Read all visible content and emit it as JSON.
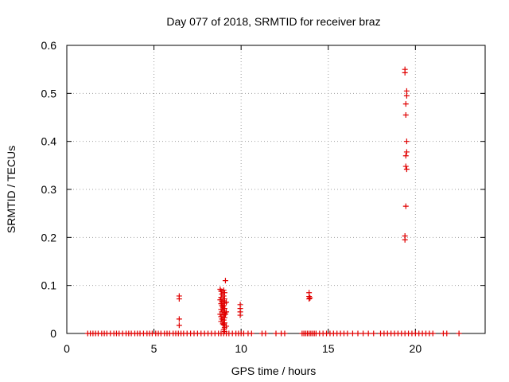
{
  "chart_data": {
    "type": "scatter",
    "title": "Day 077 of 2018, SRMTID for receiver braz",
    "xlabel": "GPS time / hours",
    "ylabel": "SRMTID / TECUs",
    "xlim": [
      0,
      24
    ],
    "ylim": [
      0,
      0.6
    ],
    "xticks": [
      0,
      5,
      10,
      15,
      20
    ],
    "xtick_labels": [
      "0",
      "5",
      "10",
      "15",
      "20"
    ],
    "yticks": [
      0,
      0.1,
      0.2,
      0.3,
      0.4,
      0.5,
      0.6
    ],
    "ytick_labels": [
      "0",
      "0.1",
      "0.2",
      "0.3",
      "0.4",
      "0.5",
      "0.6"
    ],
    "grid": true,
    "marker": "+",
    "marker_color": "#e00000",
    "series": [
      {
        "name": "braz",
        "points": [
          [
            1.2,
            0
          ],
          [
            1.35,
            0
          ],
          [
            1.5,
            0
          ],
          [
            1.65,
            0
          ],
          [
            1.8,
            0
          ],
          [
            2.0,
            0
          ],
          [
            2.15,
            0
          ],
          [
            2.3,
            0
          ],
          [
            2.5,
            0
          ],
          [
            2.7,
            0
          ],
          [
            2.85,
            0
          ],
          [
            3.0,
            0
          ],
          [
            3.2,
            0
          ],
          [
            3.4,
            0
          ],
          [
            3.55,
            0
          ],
          [
            3.7,
            0
          ],
          [
            3.9,
            0
          ],
          [
            4.05,
            0
          ],
          [
            4.2,
            0
          ],
          [
            4.4,
            0
          ],
          [
            4.6,
            0
          ],
          [
            4.75,
            0
          ],
          [
            4.9,
            0
          ],
          [
            5.1,
            0
          ],
          [
            5.25,
            0
          ],
          [
            5.4,
            0
          ],
          [
            5.6,
            0
          ],
          [
            5.75,
            0
          ],
          [
            5.9,
            0
          ],
          [
            6.1,
            0
          ],
          [
            6.25,
            0
          ],
          [
            6.4,
            0
          ],
          [
            6.55,
            0
          ],
          [
            6.7,
            0
          ],
          [
            6.9,
            0
          ],
          [
            7.1,
            0
          ],
          [
            7.3,
            0
          ],
          [
            7.5,
            0
          ],
          [
            7.7,
            0
          ],
          [
            7.9,
            0
          ],
          [
            8.1,
            0
          ],
          [
            8.3,
            0
          ],
          [
            8.5,
            0
          ],
          [
            8.7,
            0
          ],
          [
            8.85,
            0
          ],
          [
            9.0,
            0
          ],
          [
            9.15,
            0
          ],
          [
            9.3,
            0
          ],
          [
            9.5,
            0
          ],
          [
            9.7,
            0
          ],
          [
            9.85,
            0
          ],
          [
            10.0,
            0
          ],
          [
            10.15,
            0
          ],
          [
            10.4,
            0
          ],
          [
            10.6,
            0
          ],
          [
            11.2,
            0
          ],
          [
            11.4,
            0
          ],
          [
            12.0,
            0
          ],
          [
            12.3,
            0
          ],
          [
            12.5,
            0
          ],
          [
            13.5,
            0
          ],
          [
            13.6,
            0
          ],
          [
            13.7,
            0
          ],
          [
            13.8,
            0
          ],
          [
            13.9,
            0
          ],
          [
            14.0,
            0
          ],
          [
            14.1,
            0
          ],
          [
            14.2,
            0
          ],
          [
            14.3,
            0
          ],
          [
            14.5,
            0
          ],
          [
            14.7,
            0
          ],
          [
            14.9,
            0
          ],
          [
            15.1,
            0
          ],
          [
            15.3,
            0
          ],
          [
            15.5,
            0
          ],
          [
            15.7,
            0
          ],
          [
            15.9,
            0
          ],
          [
            16.1,
            0
          ],
          [
            16.4,
            0
          ],
          [
            16.7,
            0
          ],
          [
            17.0,
            0
          ],
          [
            17.3,
            0
          ],
          [
            17.6,
            0
          ],
          [
            18.0,
            0
          ],
          [
            18.2,
            0
          ],
          [
            18.4,
            0
          ],
          [
            18.6,
            0
          ],
          [
            18.8,
            0
          ],
          [
            19.0,
            0
          ],
          [
            19.2,
            0
          ],
          [
            19.4,
            0
          ],
          [
            19.6,
            0
          ],
          [
            19.8,
            0
          ],
          [
            20.0,
            0
          ],
          [
            20.2,
            0
          ],
          [
            20.4,
            0
          ],
          [
            20.6,
            0
          ],
          [
            20.8,
            0
          ],
          [
            21.0,
            0
          ],
          [
            21.6,
            0
          ],
          [
            21.8,
            0
          ],
          [
            22.5,
            0
          ],
          [
            6.45,
            0.078
          ],
          [
            6.45,
            0.072
          ],
          [
            6.45,
            0.03
          ],
          [
            6.45,
            0.017
          ],
          [
            8.8,
            0.092
          ],
          [
            8.85,
            0.088
          ],
          [
            8.9,
            0.082
          ],
          [
            8.85,
            0.075
          ],
          [
            8.8,
            0.07
          ],
          [
            8.9,
            0.066
          ],
          [
            8.85,
            0.062
          ],
          [
            8.9,
            0.058
          ],
          [
            8.95,
            0.055
          ],
          [
            8.85,
            0.05
          ],
          [
            8.9,
            0.045
          ],
          [
            8.8,
            0.04
          ],
          [
            8.85,
            0.035
          ],
          [
            8.9,
            0.03
          ],
          [
            8.85,
            0.025
          ],
          [
            8.95,
            0.02
          ],
          [
            9.0,
            0.09
          ],
          [
            9.05,
            0.085
          ],
          [
            9.0,
            0.078
          ],
          [
            9.05,
            0.072
          ],
          [
            9.0,
            0.068
          ],
          [
            9.05,
            0.063
          ],
          [
            9.0,
            0.058
          ],
          [
            9.05,
            0.052
          ],
          [
            9.0,
            0.048
          ],
          [
            9.05,
            0.043
          ],
          [
            9.0,
            0.038
          ],
          [
            9.05,
            0.033
          ],
          [
            9.0,
            0.028
          ],
          [
            9.05,
            0.022
          ],
          [
            9.0,
            0.018
          ],
          [
            9.05,
            0.012
          ],
          [
            9.0,
            0.008
          ],
          [
            9.05,
            0.004
          ],
          [
            9.1,
            0.11
          ],
          [
            9.15,
            0.065
          ],
          [
            9.15,
            0.045
          ],
          [
            9.1,
            0.04
          ],
          [
            9.15,
            0.015
          ],
          [
            9.95,
            0.06
          ],
          [
            9.95,
            0.052
          ],
          [
            9.95,
            0.045
          ],
          [
            9.95,
            0.038
          ],
          [
            13.9,
            0.085
          ],
          [
            13.9,
            0.077
          ],
          [
            13.95,
            0.074
          ],
          [
            13.9,
            0.072
          ],
          [
            19.4,
            0.55
          ],
          [
            19.4,
            0.543
          ],
          [
            19.5,
            0.505
          ],
          [
            19.5,
            0.495
          ],
          [
            19.45,
            0.478
          ],
          [
            19.45,
            0.455
          ],
          [
            19.5,
            0.4
          ],
          [
            19.5,
            0.378
          ],
          [
            19.45,
            0.37
          ],
          [
            19.45,
            0.348
          ],
          [
            19.5,
            0.342
          ],
          [
            19.45,
            0.265
          ],
          [
            19.4,
            0.203
          ],
          [
            19.4,
            0.195
          ]
        ]
      }
    ]
  }
}
